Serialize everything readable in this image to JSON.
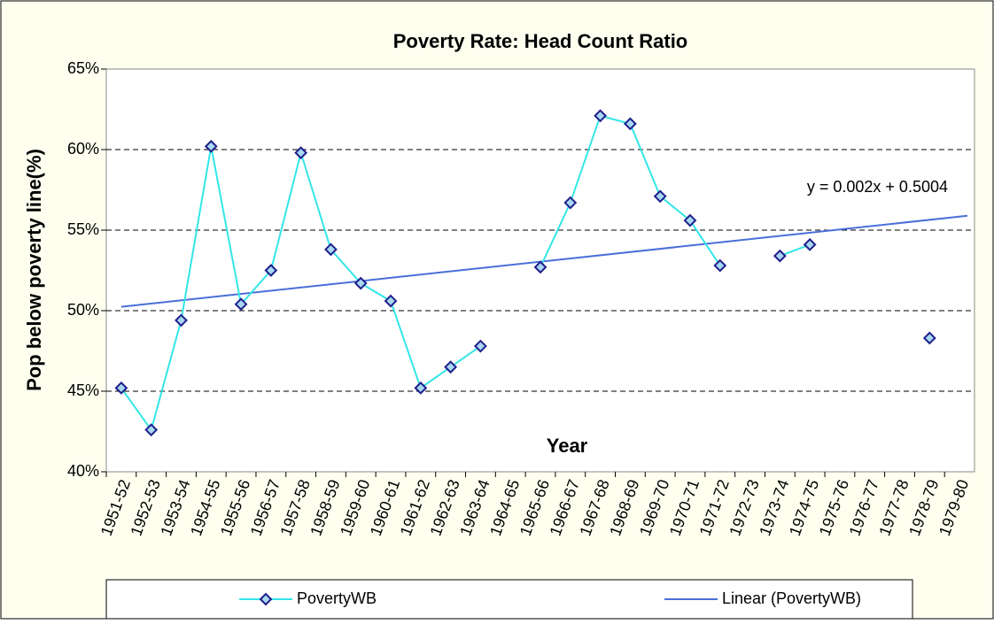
{
  "chart_data": {
    "type": "line",
    "title": "Poverty Rate: Head Count Ratio",
    "y_label": "Pop below poverty line(%)",
    "x_label": "Year",
    "categories": [
      "1951-52",
      "1952-53",
      "1953-54",
      "1954-55",
      "1955-56",
      "1956-57",
      "1957-58",
      "1958-59",
      "1959-60",
      "1960-61",
      "1961-62",
      "1962-63",
      "1963-64",
      "1964-65",
      "1965-66",
      "1966-67",
      "1967-68",
      "1968-69",
      "1969-70",
      "1970-71",
      "1971-72",
      "1972-73",
      "1973-74",
      "1974-75",
      "1975-76",
      "1976-77",
      "1977-78",
      "1978-79",
      "1979-80"
    ],
    "series": [
      {
        "name": "PovertyWB",
        "color": "#33e6e6",
        "marker_color": "#1f1f8c",
        "values": [
          45.2,
          42.6,
          49.4,
          60.2,
          50.4,
          52.5,
          59.8,
          53.8,
          51.7,
          50.6,
          45.2,
          46.5,
          47.8,
          null,
          52.7,
          56.7,
          62.1,
          61.6,
          57.1,
          55.6,
          52.8,
          null,
          53.4,
          54.1,
          null,
          null,
          null,
          48.3,
          null
        ]
      }
    ],
    "trendline": {
      "name": "Linear (PovertyWB)",
      "color": "#4a6fd8",
      "slope": 0.2,
      "intercept": 50.04,
      "equation": "y = 0.002x + 0.5004"
    },
    "ylim": [
      40,
      65
    ],
    "yticks": [
      {
        "value": 40,
        "label": "40%"
      },
      {
        "value": 45,
        "label": "45%"
      },
      {
        "value": 50,
        "label": "50%"
      },
      {
        "value": 55,
        "label": "55%"
      },
      {
        "value": 60,
        "label": "60%"
      },
      {
        "value": 65,
        "label": "65%"
      }
    ],
    "grid": true
  }
}
